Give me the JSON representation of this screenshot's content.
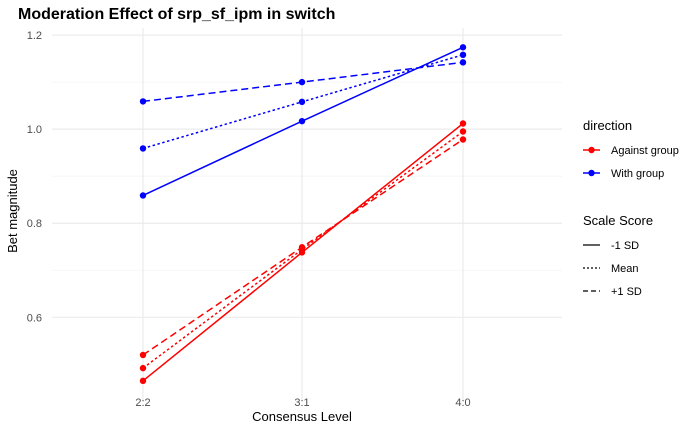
{
  "chart_data": {
    "type": "line",
    "title": "Moderation Effect of srp_sf_ipm in switch",
    "xlabel": "Consensus Level",
    "ylabel": "Bet magnitude",
    "categories": [
      "2:2",
      "3:1",
      "4:0"
    ],
    "ylim": [
      0.42,
      1.215
    ],
    "yticks": [
      0.6,
      0.8,
      1.0,
      1.2
    ],
    "ytick_labels": [
      "0.6",
      "0.8",
      "1.0",
      "1.2"
    ],
    "grid": true,
    "legend_position": "right",
    "legends": {
      "color": {
        "title": "direction",
        "items": [
          {
            "label": "Against group",
            "color": "#ff0000"
          },
          {
            "label": "With group",
            "color": "#0000ff"
          }
        ]
      },
      "linetype": {
        "title": "Scale Score",
        "items": [
          {
            "label": "-1 SD",
            "linetype": "solid"
          },
          {
            "label": "Mean",
            "linetype": "dotted"
          },
          {
            "label": "+1 SD",
            "linetype": "dashed"
          }
        ]
      }
    },
    "series": [
      {
        "direction": "With group",
        "scale": "-1 SD",
        "color": "#0000ff",
        "linetype": "solid",
        "values": [
          0.859,
          1.017,
          1.174
        ]
      },
      {
        "direction": "With group",
        "scale": "Mean",
        "color": "#0000ff",
        "linetype": "dotted",
        "values": [
          0.959,
          1.058,
          1.158
        ]
      },
      {
        "direction": "With group",
        "scale": "+1 SD",
        "color": "#0000ff",
        "linetype": "dashed",
        "values": [
          1.059,
          1.1,
          1.142
        ]
      },
      {
        "direction": "Against group",
        "scale": "-1 SD",
        "color": "#ff0000",
        "linetype": "solid",
        "values": [
          0.465,
          0.738,
          1.012
        ]
      },
      {
        "direction": "Against group",
        "scale": "Mean",
        "color": "#ff0000",
        "linetype": "dotted",
        "values": [
          0.492,
          0.744,
          0.995
        ]
      },
      {
        "direction": "Against group",
        "scale": "+1 SD",
        "color": "#ff0000",
        "linetype": "dashed",
        "values": [
          0.52,
          0.749,
          0.978
        ]
      }
    ]
  }
}
